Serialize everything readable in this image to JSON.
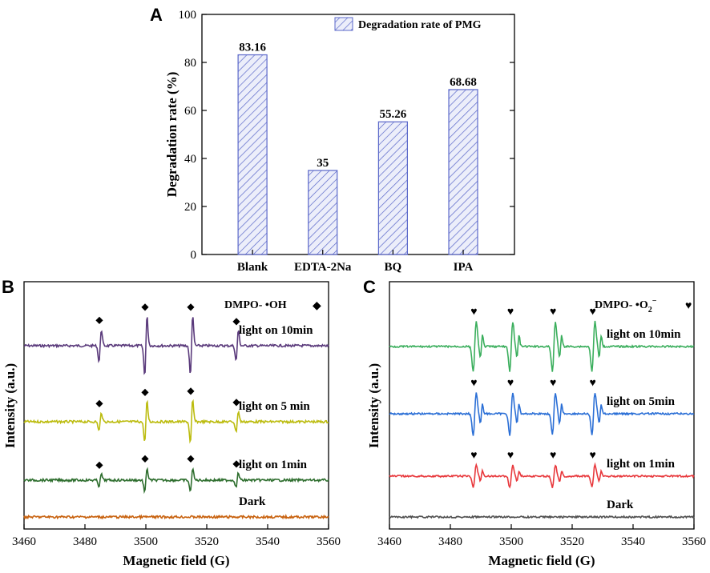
{
  "chart_data": [
    {
      "panel": "A",
      "type": "bar",
      "categories": [
        "Blank",
        "EDTA-2Na",
        "BQ",
        "IPA"
      ],
      "values": [
        83.16,
        35,
        55.26,
        68.68
      ],
      "value_labels": [
        "83.16",
        "35",
        "55.26",
        "68.68"
      ],
      "xlabel": "",
      "ylabel": "Degradation rate (%)",
      "ylim": [
        0,
        100
      ],
      "yticks": [
        "0",
        "20",
        "40",
        "60",
        "80",
        "100"
      ],
      "legend": "Degradation rate of PMG",
      "legend_position": "top-right",
      "bar_color": "#5a67c9"
    },
    {
      "panel": "B",
      "type": "line",
      "xlabel": "Magnetic field (G)",
      "ylabel": "Intensity (a.u.)",
      "xlim": [
        3460,
        3560
      ],
      "xticks": [
        "3460",
        "3480",
        "3500",
        "3520",
        "3540",
        "3560"
      ],
      "legend": "DMPO- •OH",
      "legend_symbol": "◆",
      "peaks": [
        3485,
        3500,
        3515,
        3530
      ],
      "series": [
        {
          "name": "light on 10min",
          "color": "#5b3b7c",
          "marker_color": "#2d4f9e",
          "amplitudes": [
            0.8,
            1.45,
            1.45,
            0.75
          ]
        },
        {
          "name": "light on 5 min",
          "color": "#bcbc10",
          "marker_color": "#d8d810",
          "amplitudes": [
            0.45,
            1.0,
            1.05,
            0.5
          ]
        },
        {
          "name": "light on 1min",
          "color": "#2e6e2e",
          "marker_color": "#2e6e2e",
          "amplitudes": [
            0.3,
            0.6,
            0.6,
            0.35
          ]
        },
        {
          "name": "Dark",
          "color": "#c8620f",
          "marker_color": "",
          "amplitudes": [
            0,
            0,
            0,
            0
          ]
        }
      ]
    },
    {
      "panel": "C",
      "type": "line",
      "xlabel": "Magnetic field (G)",
      "ylabel": "Intensity (a.u.)",
      "xlim": [
        3460,
        3560
      ],
      "xticks": [
        "3460",
        "3480",
        "3500",
        "3520",
        "3540",
        "3560"
      ],
      "legend": "DMPO- •O",
      "legend_sub": "2",
      "legend_sup": "−",
      "legend_symbol": "♥",
      "peaks": [
        3488,
        3500,
        3514,
        3527
      ],
      "series": [
        {
          "name": "light on 10min",
          "color": "#3aae5c",
          "marker_color": "#3aae5c",
          "amplitudes": [
            1.0,
            1.0,
            1.0,
            1.0
          ]
        },
        {
          "name": "light on 5min",
          "color": "#2b6fd6",
          "marker_color": "#2b6fd6",
          "amplitudes": [
            0.85,
            0.85,
            0.85,
            0.85
          ]
        },
        {
          "name": "light on 1min",
          "color": "#e8383c",
          "marker_color": "#e8383c",
          "amplitudes": [
            0.45,
            0.45,
            0.45,
            0.45
          ]
        },
        {
          "name": "Dark",
          "color": "#505050",
          "marker_color": "",
          "amplitudes": [
            0,
            0,
            0,
            0
          ]
        }
      ]
    }
  ]
}
